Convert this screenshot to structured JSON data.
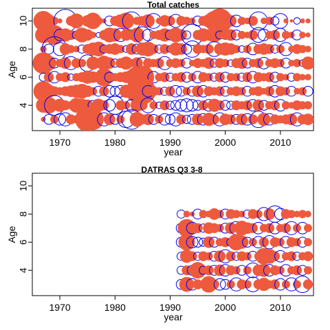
{
  "chart_data": [
    {
      "type": "scatter",
      "title": "Total catches",
      "xlabel": "year",
      "ylabel": "Age",
      "xlim": [
        1965,
        2016
      ],
      "ylim": [
        2.2,
        10.9
      ],
      "x_ticks": [
        1970,
        1980,
        1990,
        2000,
        2010
      ],
      "y_ticks": [
        4,
        6,
        8,
        10
      ],
      "grid": false,
      "year_range": [
        1967,
        2015
      ],
      "ages": [
        3,
        4,
        5,
        6,
        7,
        8,
        9,
        10
      ],
      "positive_color": "#ee5a3e",
      "negative_color": "#0000ee",
      "series": [
        {
          "age": 10,
          "residuals": [
            1.2,
            0.8,
            0.5,
            0.3,
            -1.4,
            0.6,
            0.9,
            0.4,
            0.7,
            1.0,
            0.5,
            0.3,
            -0.6,
            0.6,
            0.8,
            1.0,
            -1.1,
            0.5,
            0.6,
            0.8,
            -0.9,
            0.4,
            0.7,
            0.6,
            -0.8,
            0.6,
            0.5,
            0.4,
            -0.6,
            0.6,
            0.8,
            1.2,
            1.5,
            0.9,
            0.7,
            -0.7,
            0.5,
            0.4,
            0.6,
            -1.1,
            0.4,
            0.5,
            -0.5,
            -0.9,
            0.3,
            0.2,
            -0.4,
            0.3,
            0.3
          ]
        },
        {
          "age": 9,
          "residuals": [
            1.0,
            0.9,
            1.2,
            -0.7,
            0.8,
            0.6,
            -0.5,
            0.9,
            0.7,
            0.4,
            -0.3,
            0.6,
            0.9,
            0.8,
            -0.8,
            0.7,
            0.6,
            0.9,
            -1.0,
            -0.7,
            0.5,
            0.6,
            0.8,
            -0.6,
            0.9,
            0.7,
            -0.5,
            -1.3,
            0.6,
            0.8,
            0.7,
            0.9,
            -0.5,
            0.6,
            0.7,
            -0.6,
            0.5,
            0.4,
            0.6,
            -0.9,
            -0.7,
            0.5,
            0.6,
            -0.8,
            0.5,
            0.4,
            -0.6,
            0.4,
            0.3
          ]
        },
        {
          "age": 8,
          "residuals": [
            0.4,
            -0.6,
            -1.5,
            -0.8,
            0.7,
            0.5,
            0.4,
            -0.5,
            0.6,
            0.8,
            0.9,
            -0.5,
            0.6,
            0.7,
            0.5,
            -0.4,
            0.7,
            -0.6,
            0.8,
            0.9,
            0.6,
            -0.5,
            0.6,
            -0.4,
            0.8,
            0.7,
            -0.6,
            -1.0,
            0.6,
            0.5,
            0.6,
            -0.9,
            0.7,
            0.8,
            0.7,
            0.5,
            -0.4,
            0.5,
            -0.7,
            0.6,
            0.7,
            0.6,
            -0.5,
            0.5,
            -0.8,
            0.4,
            0.6,
            0.5,
            0.4
          ]
        },
        {
          "age": 7,
          "residuals": [
            1.3,
            0.9,
            -0.6,
            0.5,
            0.7,
            -0.8,
            0.6,
            0.5,
            -1.0,
            0.8,
            0.6,
            0.9,
            0.7,
            -0.5,
            0.6,
            0.8,
            0.5,
            0.7,
            -0.7,
            0.6,
            0.5,
            0.6,
            -0.8,
            0.5,
            0.6,
            0.5,
            -0.6,
            0.4,
            0.6,
            0.5,
            0.7,
            -0.5,
            0.6,
            0.5,
            -0.4,
            0.6,
            0.7,
            -0.6,
            0.5,
            0.6,
            -0.7,
            0.5,
            0.6,
            0.5,
            -0.6,
            0.4,
            0.5,
            -0.4,
            0.8
          ]
        },
        {
          "age": 6,
          "residuals": [
            -0.5,
            0.6,
            -0.7,
            0.5,
            0.6,
            -0.4,
            0.5,
            0.6,
            0.8,
            0.7,
            0.5,
            1.1,
            -0.6,
            0.5,
            0.6,
            0.7,
            0.9,
            1.3,
            1.4,
            0.6,
            -0.7,
            0.5,
            0.6,
            -0.5,
            0.5,
            0.6,
            -0.6,
            0.5,
            -0.7,
            0.6,
            0.5,
            -0.5,
            0.6,
            -0.6,
            0.5,
            0.5,
            -0.5,
            0.6,
            -0.7,
            0.6,
            0.5,
            0.6,
            -0.6,
            0.5,
            0.4,
            -0.5,
            0.5,
            0.4,
            0.4
          ]
        },
        {
          "age": 5,
          "residuals": [
            1.2,
            0.8,
            0.6,
            0.5,
            0.6,
            0.7,
            0.8,
            0.9,
            0.7,
            0.5,
            -0.6,
            0.6,
            -0.7,
            -0.6,
            -0.7,
            0.8,
            -0.6,
            1.4,
            1.6,
            -0.7,
            0.6,
            0.5,
            -0.5,
            0.6,
            -0.7,
            -0.6,
            0.5,
            -0.6,
            0.7,
            -0.7,
            0.6,
            0.5,
            0.6,
            -0.6,
            0.5,
            0.6,
            0.5,
            -0.6,
            0.5,
            0.6,
            0.4,
            0.6,
            -0.7,
            0.6,
            0.5,
            -0.6,
            0.4,
            0.5,
            -0.6
          ]
        },
        {
          "age": 4,
          "residuals": [
            0.9,
            1.0,
            -1.2,
            0.8,
            0.6,
            0.5,
            0.9,
            0.8,
            0.7,
            -0.6,
            0.8,
            0.6,
            -0.7,
            -1.1,
            0.6,
            0.5,
            -0.7,
            0.8,
            0.6,
            -0.9,
            0.5,
            -0.4,
            0.6,
            -0.5,
            -0.6,
            -0.7,
            -0.8,
            -0.7,
            -0.6,
            0.6,
            -0.7,
            0.8,
            0.6,
            -0.6,
            -0.5,
            0.6,
            0.5,
            0.6,
            -0.7,
            0.7,
            -0.6,
            0.5,
            0.6,
            -0.7,
            0.5,
            0.4,
            0.6,
            0.5,
            0.5
          ]
        },
        {
          "age": 3,
          "residuals": [
            0.3,
            -0.6,
            0.5,
            -0.7,
            -0.8,
            0.6,
            0.5,
            -0.6,
            1.5,
            1.3,
            0.6,
            -0.8,
            0.7,
            -0.6,
            0.5,
            -1.0,
            -1.2,
            0.9,
            0.6,
            0.7,
            -0.6,
            0.5,
            -0.7,
            -0.6,
            -0.8,
            0.6,
            -0.5,
            -0.6,
            0.7,
            -0.7,
            0.8,
            0.6,
            -0.8,
            0.7,
            0.6,
            -0.6,
            0.7,
            -0.7,
            0.6,
            -1.0,
            0.8,
            -0.7,
            0.6,
            0.5,
            0.6,
            0.7,
            -0.8,
            0.6,
            0.7
          ]
        }
      ]
    },
    {
      "type": "scatter",
      "title": "DATRAS Q3 3-8",
      "xlabel": "year",
      "ylabel": "Age",
      "xlim": [
        1965,
        2016
      ],
      "ylim": [
        2.2,
        10.9
      ],
      "x_ticks": [
        1970,
        1980,
        1990,
        2000,
        2010
      ],
      "y_ticks": [
        4,
        6,
        8,
        10
      ],
      "grid": false,
      "year_range": [
        1992,
        2015
      ],
      "ages": [
        3,
        4,
        5,
        6,
        7,
        8
      ],
      "positive_color": "#ee5a3e",
      "negative_color": "#0000ee",
      "series": [
        {
          "age": 8,
          "residuals": [
            -0.5,
            0.4,
            0.3,
            -0.6,
            0.5,
            0.4,
            0.7,
            0.5,
            -0.6,
            0.6,
            0.5,
            0.4,
            -0.5,
            0.6,
            0.5,
            -0.8,
            0.7,
            -1.0,
            -0.7,
            0.6,
            0.5,
            0.4,
            0.5,
            0.4
          ]
        },
        {
          "age": 7,
          "residuals": [
            -0.6,
            1.1,
            -0.7,
            0.6,
            -0.5,
            0.7,
            0.6,
            0.5,
            -0.6,
            0.7,
            -0.8,
            0.9,
            0.7,
            0.6,
            -0.7,
            0.5,
            0.6,
            -0.7,
            0.5,
            0.6,
            -0.8,
            0.5,
            -0.7,
            0.5
          ]
        },
        {
          "age": 6,
          "residuals": [
            -0.6,
            1.0,
            -0.7,
            -0.6,
            -0.5,
            0.7,
            -0.6,
            0.5,
            0.6,
            -0.5,
            1.0,
            0.8,
            -0.6,
            0.5,
            -0.7,
            0.6,
            -0.8,
            0.6,
            0.5,
            -0.7,
            0.6,
            0.5,
            -0.6,
            0.5
          ]
        },
        {
          "age": 5,
          "residuals": [
            -0.5,
            0.8,
            0.6,
            -0.5,
            0.6,
            0.5,
            -0.6,
            0.7,
            -0.8,
            0.6,
            -0.5,
            0.6,
            0.5,
            -0.6,
            0.5,
            1.0,
            0.9,
            0.6,
            -0.7,
            0.5,
            0.6,
            -0.5,
            0.5,
            0.6
          ]
        },
        {
          "age": 4,
          "residuals": [
            -0.5,
            0.6,
            -0.6,
            1.0,
            -0.5,
            0.6,
            -0.6,
            0.7,
            -0.7,
            0.6,
            0.5,
            -0.6,
            0.5,
            -0.9,
            0.7,
            0.8,
            -0.7,
            0.6,
            0.5,
            -0.7,
            0.5,
            0.6,
            -0.6,
            0.5
          ]
        },
        {
          "age": 3,
          "residuals": [
            -0.6,
            0.9,
            -0.7,
            0.6,
            0.5,
            1.0,
            0.6,
            -0.7,
            -0.6,
            0.5,
            -0.8,
            0.6,
            0.5,
            -0.9,
            0.6,
            0.8,
            0.5,
            0.6,
            -0.7,
            0.5,
            -0.8,
            0.5,
            -1.0,
            0.6
          ]
        }
      ]
    }
  ]
}
